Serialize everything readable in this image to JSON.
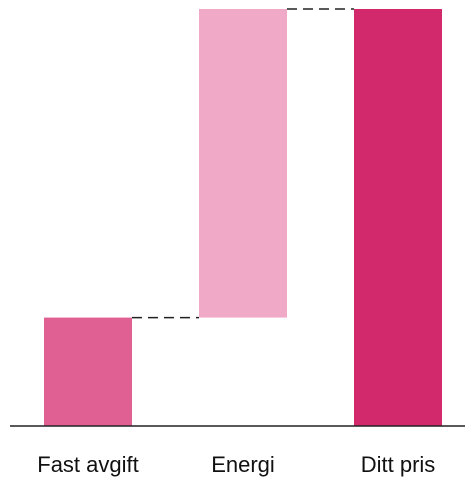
{
  "chart_data": {
    "type": "waterfall",
    "title": "",
    "xlabel": "",
    "ylabel": "",
    "categories": [
      "Fast avgift",
      "Energi",
      "Ditt pris"
    ],
    "steps": [
      {
        "category": "Fast avgift",
        "start": 0,
        "end": 26,
        "kind": "increase"
      },
      {
        "category": "Energi",
        "start": 26,
        "end": 100,
        "kind": "increase"
      },
      {
        "category": "Ditt pris",
        "start": 0,
        "end": 100,
        "kind": "total"
      }
    ],
    "ylim": [
      0,
      100
    ],
    "grid": false,
    "legend": "none",
    "colors": {
      "Fast avgift": "#e06094",
      "Energi": "#f0aac8",
      "Ditt pris": "#d1296b",
      "connector": "#222222",
      "axis": "#222222"
    }
  }
}
